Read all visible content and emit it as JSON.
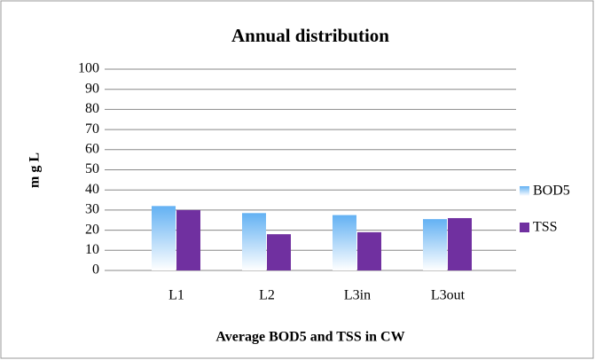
{
  "chart_data": {
    "type": "bar",
    "title": "Annual distribution",
    "x_label": "Average BOD5 and  TSS in CW",
    "y_label": "m g L",
    "categories": [
      "L1",
      "L2",
      "L3in",
      "L3out"
    ],
    "series": [
      {
        "name": "BOD5",
        "color": "#63b1f3",
        "values": [
          32,
          28.5,
          27.5,
          25.5
        ]
      },
      {
        "name": "TSS",
        "color": "#7030a0",
        "values": [
          30,
          18,
          19,
          26
        ]
      }
    ],
    "ylim": [
      0,
      100
    ],
    "yticks": [
      0,
      10,
      20,
      30,
      40,
      50,
      60,
      70,
      80,
      90,
      100
    ],
    "grid": true,
    "legend": "right"
  }
}
